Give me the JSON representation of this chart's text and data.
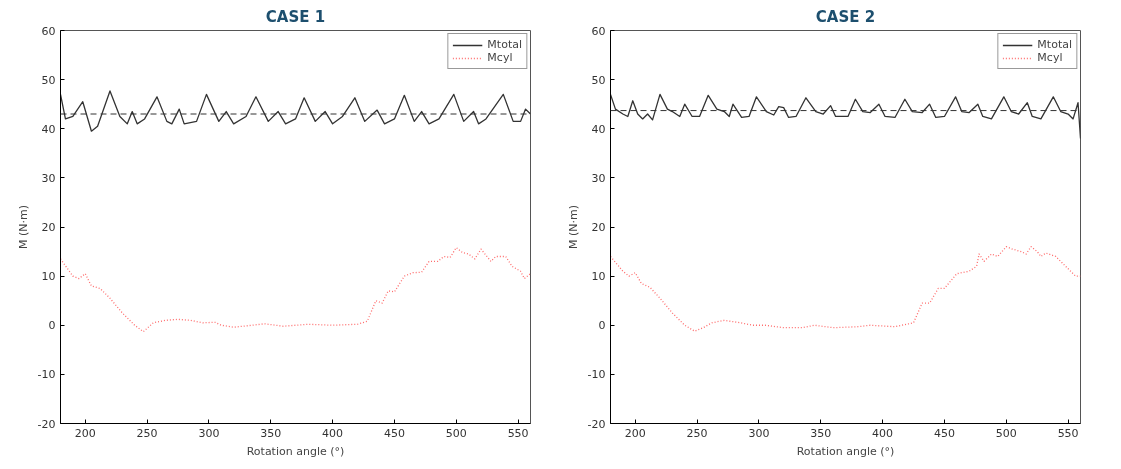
{
  "chart_data": [
    {
      "type": "line",
      "title": "CASE 1",
      "xlabel": "Rotation angle (°)",
      "ylabel": "M (N·m)",
      "xlim": [
        180,
        560
      ],
      "ylim": [
        -20,
        60
      ],
      "xticks": [
        200,
        250,
        300,
        350,
        400,
        450,
        500,
        550
      ],
      "yticks": [
        -20,
        -10,
        0,
        10,
        20,
        30,
        40,
        50,
        60
      ],
      "grid": false,
      "legend": "top right",
      "ref_lines": [
        {
          "axis": "y",
          "value": 43,
          "color": "#333333",
          "line_style": "dashed"
        }
      ],
      "series": [
        {
          "name": "Mtotal",
          "color": "#333333",
          "line_style": "solid",
          "x": [
            180,
            184,
            190,
            198,
            205,
            210,
            220,
            228,
            234,
            238,
            242,
            248,
            258,
            266,
            270,
            276,
            280,
            290,
            298,
            308,
            314,
            320,
            330,
            338,
            348,
            356,
            362,
            370,
            377,
            386,
            394,
            400,
            408,
            418,
            426,
            436,
            442,
            450,
            458,
            466,
            472,
            478,
            486,
            498,
            506,
            514,
            518,
            524,
            538,
            546,
            552,
            556,
            560
          ],
          "values": [
            47,
            42,
            42.5,
            45.5,
            39.5,
            40.5,
            47.7,
            42.5,
            41,
            43.5,
            41,
            42,
            46.5,
            41.5,
            41,
            44,
            41,
            41.5,
            47,
            41.5,
            43.5,
            41,
            42.5,
            46.5,
            41.5,
            43.5,
            41,
            42,
            46.3,
            41.5,
            43.5,
            41,
            42.5,
            46.3,
            41.5,
            43.8,
            41,
            42,
            46.8,
            41.5,
            43.5,
            41,
            42,
            47,
            41.5,
            43.5,
            41,
            42,
            47,
            41.5,
            41.5,
            44,
            43
          ]
        },
        {
          "name": "Mcyl",
          "color": "#ff6b6b",
          "line_style": "dotted",
          "x": [
            180,
            190,
            195,
            200,
            205,
            212,
            220,
            230,
            240,
            247,
            255,
            265,
            275,
            285,
            295,
            305,
            310,
            320,
            335,
            345,
            360,
            380,
            400,
            420,
            428,
            435,
            440,
            445,
            450,
            458,
            465,
            472,
            478,
            485,
            490,
            495,
            500,
            505,
            510,
            515,
            520,
            528,
            532,
            540,
            545,
            552,
            555,
            560
          ],
          "values": [
            13.5,
            10,
            9.5,
            10.5,
            8,
            7.5,
            5.5,
            2.5,
            0,
            -1.3,
            0.5,
            1,
            1.2,
            1,
            0.5,
            0.6,
            0,
            -0.4,
            0,
            0.3,
            -0.2,
            0.2,
            0,
            0.2,
            0.8,
            5,
            4.5,
            7,
            6.8,
            10,
            10.7,
            10.8,
            13,
            13,
            14,
            13.8,
            15.8,
            14.8,
            14.5,
            13.5,
            15.5,
            13,
            14,
            14,
            12,
            11,
            9.5,
            10.5
          ]
        }
      ]
    },
    {
      "type": "line",
      "title": "CASE 2",
      "xlabel": "Rotation angle (°)",
      "ylabel": "M (N·m)",
      "xlim": [
        180,
        560
      ],
      "ylim": [
        -20,
        60
      ],
      "xticks": [
        200,
        250,
        300,
        350,
        400,
        450,
        500,
        550
      ],
      "yticks": [
        -20,
        -10,
        0,
        10,
        20,
        30,
        40,
        50,
        60
      ],
      "grid": false,
      "legend": "top right",
      "ref_lines": [
        {
          "axis": "y",
          "value": 43.7,
          "color": "#333333",
          "line_style": "dashed"
        }
      ],
      "series": [
        {
          "name": "Mtotal",
          "color": "#333333",
          "line_style": "solid",
          "x": [
            180,
            184,
            190,
            194,
            198,
            202,
            206,
            210,
            214,
            220,
            226,
            230,
            236,
            240,
            246,
            252,
            259,
            266,
            272,
            276,
            279,
            286,
            292,
            298,
            306,
            312,
            316,
            320,
            324,
            330,
            338,
            346,
            352,
            358,
            362,
            372,
            378,
            384,
            390,
            397,
            402,
            410,
            418,
            424,
            432,
            438,
            443,
            450,
            459,
            464,
            470,
            477,
            481,
            488,
            498,
            504,
            510,
            517,
            521,
            528,
            538,
            544,
            550,
            554,
            558,
            560
          ],
          "values": [
            47,
            44,
            43,
            42.5,
            45.7,
            43,
            42,
            43,
            41.8,
            47,
            44,
            43.5,
            42.5,
            45,
            42.5,
            42.5,
            46.8,
            44,
            43.5,
            42.5,
            45,
            42.3,
            42.5,
            46.5,
            43.5,
            42.8,
            44.5,
            44.3,
            42.3,
            42.5,
            46.3,
            43.5,
            43,
            44.7,
            42.5,
            42.5,
            46,
            43.5,
            43.3,
            45,
            42.5,
            42.3,
            46,
            43.5,
            43.3,
            45,
            42.3,
            42.5,
            46.5,
            43.5,
            43.3,
            45,
            42.5,
            42,
            46.5,
            43.5,
            43,
            45.3,
            42.5,
            42,
            46.5,
            43.5,
            43,
            42,
            45.3,
            38
          ]
        },
        {
          "name": "Mcyl",
          "color": "#ff6b6b",
          "line_style": "dotted",
          "x": [
            180,
            190,
            195,
            200,
            205,
            212,
            220,
            230,
            240,
            248,
            255,
            262,
            272,
            285,
            295,
            305,
            320,
            335,
            345,
            360,
            380,
            390,
            410,
            425,
            432,
            438,
            445,
            450,
            460,
            470,
            476,
            478,
            482,
            488,
            493,
            500,
            505,
            512,
            516,
            520,
            525,
            528,
            532,
            540,
            548,
            552,
            556,
            560
          ],
          "values": [
            14,
            11,
            10,
            10.7,
            8.5,
            7.7,
            5.5,
            2.5,
            0,
            -1.2,
            -0.5,
            0.5,
            1,
            0.5,
            0,
            0,
            -0.5,
            -0.5,
            0,
            -0.5,
            -0.3,
            0,
            -0.3,
            0.5,
            4.5,
            4.5,
            7.5,
            7.5,
            10.5,
            11,
            12,
            14.5,
            13,
            14.5,
            14,
            16,
            15.5,
            15,
            14.5,
            16,
            15,
            14,
            14.7,
            14,
            12,
            11,
            10,
            10
          ]
        }
      ]
    }
  ]
}
